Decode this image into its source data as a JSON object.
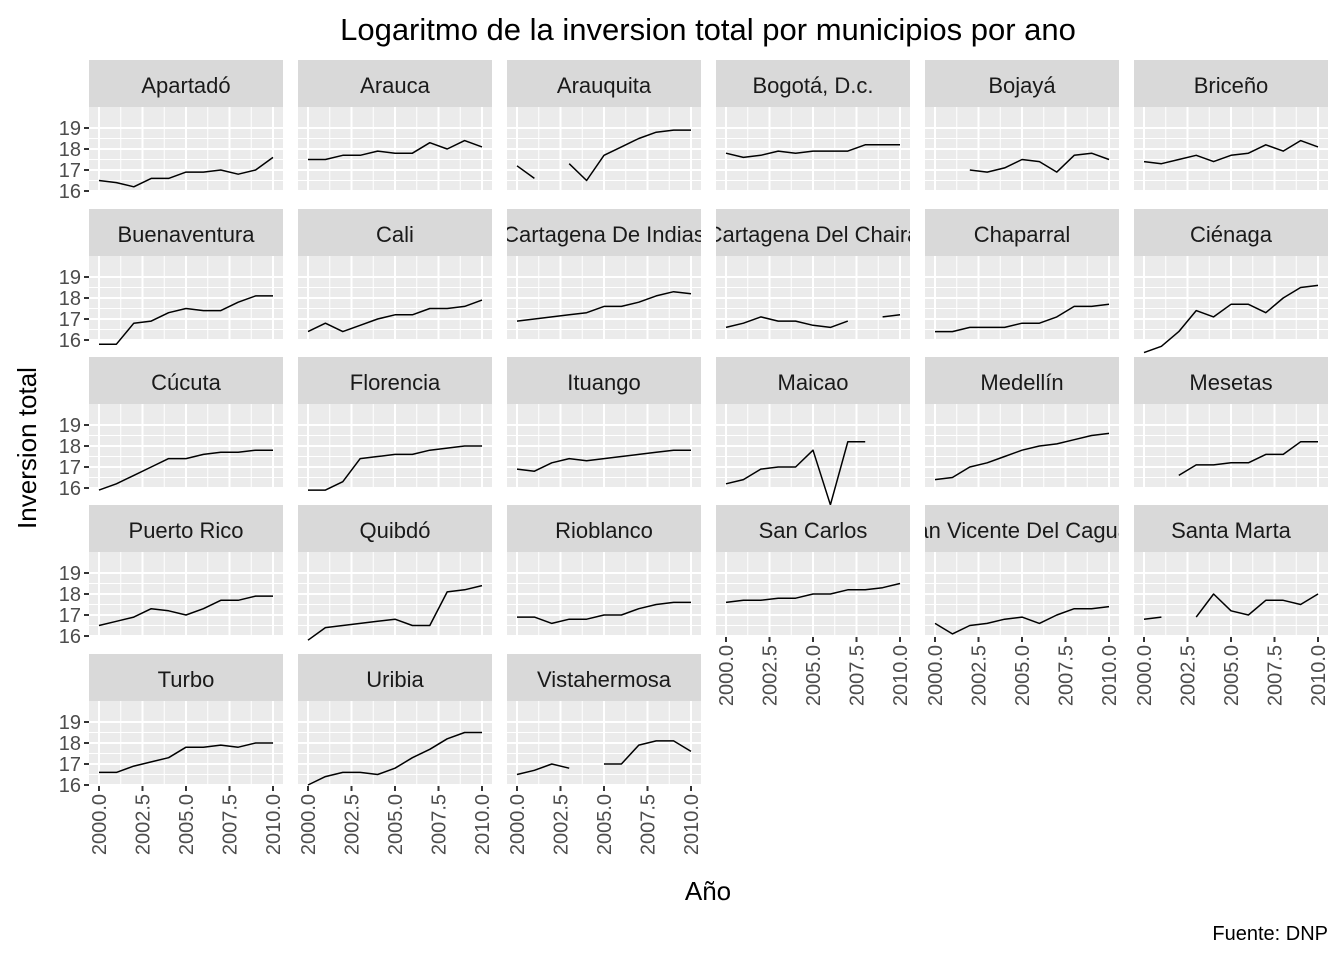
{
  "chart_data": {
    "type": "line",
    "title": "Logaritmo de la inversion total por municipios por ano",
    "xlabel": "Año",
    "ylabel": "Inversion total",
    "caption": "Fuente: DNP",
    "xlim": [
      2000,
      2010
    ],
    "ylim": [
      15,
      20
    ],
    "x_ticks": [
      2000,
      2002.5,
      2005,
      2007.5,
      2010
    ],
    "x_tick_labels": [
      "2000.0",
      "2002.5",
      "2005.0",
      "2007.5",
      "2010.0"
    ],
    "y_ticks": [
      16,
      17,
      18,
      19
    ],
    "y_tick_labels": [
      "16",
      "17",
      "18",
      "19"
    ],
    "grid": true,
    "facet_columns": 6,
    "x": [
      2000,
      2001,
      2002,
      2003,
      2004,
      2005,
      2006,
      2007,
      2008,
      2009,
      2010
    ],
    "series": [
      {
        "name": "Apartadó",
        "values": [
          16.5,
          16.4,
          16.2,
          16.6,
          16.6,
          16.9,
          16.9,
          17.0,
          16.8,
          17.0,
          17.6
        ]
      },
      {
        "name": "Arauca",
        "values": [
          17.5,
          17.5,
          17.7,
          17.7,
          17.9,
          17.8,
          17.8,
          18.3,
          18.0,
          18.4,
          18.1
        ]
      },
      {
        "name": "Arauquita",
        "values": [
          17.2,
          16.6,
          null,
          17.3,
          16.5,
          17.7,
          18.1,
          18.5,
          18.8,
          18.9,
          18.9
        ]
      },
      {
        "name": "Bogotá, D.c.",
        "values": [
          17.8,
          17.6,
          17.7,
          17.9,
          17.8,
          17.9,
          17.9,
          17.9,
          18.2,
          18.2,
          18.2
        ]
      },
      {
        "name": "Bojayá",
        "values": [
          null,
          null,
          17.0,
          16.9,
          17.1,
          17.5,
          17.4,
          16.9,
          17.7,
          17.8,
          17.5
        ]
      },
      {
        "name": "Briceño",
        "values": [
          17.4,
          17.3,
          17.5,
          17.7,
          17.4,
          17.7,
          17.8,
          18.2,
          17.9,
          18.4,
          18.1
        ]
      },
      {
        "name": "Buenaventura",
        "values": [
          15.8,
          15.8,
          16.8,
          16.9,
          17.3,
          17.5,
          17.4,
          17.4,
          17.8,
          18.1,
          18.1
        ]
      },
      {
        "name": "Cali",
        "values": [
          16.4,
          16.8,
          16.4,
          16.7,
          17.0,
          17.2,
          17.2,
          17.5,
          17.5,
          17.6,
          17.9
        ]
      },
      {
        "name": "Cartagena De Indias",
        "values": [
          16.9,
          17.0,
          17.1,
          17.2,
          17.3,
          17.6,
          17.6,
          17.8,
          18.1,
          18.3,
          18.2
        ]
      },
      {
        "name": "Cartagena Del Chaira",
        "values": [
          16.6,
          16.8,
          17.1,
          16.9,
          16.9,
          16.7,
          16.6,
          16.9,
          null,
          17.1,
          17.2
        ]
      },
      {
        "name": "Chaparral",
        "values": [
          16.4,
          16.4,
          16.6,
          16.6,
          16.6,
          16.8,
          16.8,
          17.1,
          17.6,
          17.6,
          17.7
        ]
      },
      {
        "name": "Ciénaga",
        "values": [
          15.4,
          15.7,
          16.4,
          17.4,
          17.1,
          17.7,
          17.7,
          17.3,
          18.0,
          18.5,
          18.6
        ]
      },
      {
        "name": "Cúcuta",
        "values": [
          15.9,
          16.2,
          16.6,
          17.0,
          17.4,
          17.4,
          17.6,
          17.7,
          17.7,
          17.8,
          17.8
        ]
      },
      {
        "name": "Florencia",
        "values": [
          15.9,
          15.9,
          16.3,
          17.4,
          17.5,
          17.6,
          17.6,
          17.8,
          17.9,
          18.0,
          18.0
        ]
      },
      {
        "name": "Ituango",
        "values": [
          16.9,
          16.8,
          17.2,
          17.4,
          17.3,
          17.4,
          17.5,
          17.6,
          17.7,
          17.8,
          17.8
        ]
      },
      {
        "name": "Maicao",
        "values": [
          16.2,
          16.4,
          16.9,
          17.0,
          17.0,
          17.8,
          15.2,
          18.2,
          18.2,
          null,
          null
        ]
      },
      {
        "name": "Medellín",
        "values": [
          16.4,
          16.5,
          17.0,
          17.2,
          17.5,
          17.8,
          18.0,
          18.1,
          18.3,
          18.5,
          18.6
        ]
      },
      {
        "name": "Mesetas",
        "values": [
          null,
          null,
          16.6,
          17.1,
          17.1,
          17.2,
          17.2,
          17.6,
          17.6,
          18.2,
          18.2
        ]
      },
      {
        "name": "Puerto Rico",
        "values": [
          16.5,
          16.7,
          16.9,
          17.3,
          17.2,
          17.0,
          17.3,
          17.7,
          17.7,
          17.9,
          17.9
        ]
      },
      {
        "name": "Quibdó",
        "values": [
          15.8,
          16.4,
          16.5,
          16.6,
          16.7,
          16.8,
          16.5,
          16.5,
          18.1,
          18.2,
          18.4
        ]
      },
      {
        "name": "Rioblanco",
        "values": [
          16.9,
          16.9,
          16.6,
          16.8,
          16.8,
          17.0,
          17.0,
          17.3,
          17.5,
          17.6,
          17.6
        ]
      },
      {
        "name": "San Carlos",
        "values": [
          17.6,
          17.7,
          17.7,
          17.8,
          17.8,
          18.0,
          18.0,
          18.2,
          18.2,
          18.3,
          18.5
        ]
      },
      {
        "name": "San Vicente Del Caguán",
        "values": [
          16.6,
          16.1,
          16.5,
          16.6,
          16.8,
          16.9,
          16.6,
          17.0,
          17.3,
          17.3,
          17.4
        ]
      },
      {
        "name": "Santa Marta",
        "values": [
          16.8,
          16.9,
          null,
          16.9,
          18.0,
          17.2,
          17.0,
          17.7,
          17.7,
          17.5,
          18.0
        ]
      },
      {
        "name": "Turbo",
        "values": [
          16.6,
          16.6,
          16.9,
          17.1,
          17.3,
          17.8,
          17.8,
          17.9,
          17.8,
          18.0,
          18.0
        ]
      },
      {
        "name": "Uribia",
        "values": [
          16.0,
          16.4,
          16.6,
          16.6,
          16.5,
          16.8,
          17.3,
          17.7,
          18.2,
          18.5,
          18.5
        ]
      },
      {
        "name": "Vistahermosa",
        "values": [
          16.5,
          16.7,
          17.0,
          16.8,
          null,
          17.0,
          17.0,
          17.9,
          18.1,
          18.1,
          17.6
        ]
      }
    ]
  }
}
